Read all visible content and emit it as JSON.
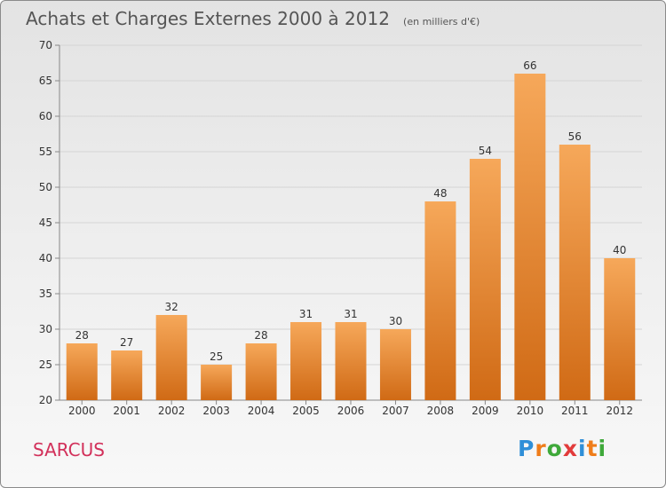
{
  "header": {
    "title": "Achats et Charges Externes 2000 à 2012",
    "subtitle": "(en milliers d'€)"
  },
  "footer": {
    "town": "SARCUS",
    "logo_letters": [
      "P",
      "r",
      "o",
      "x",
      "i",
      "t",
      "i"
    ],
    "logo_colors": [
      "#2f8fd8",
      "#ef7d1a",
      "#3fa93a",
      "#e23b3b",
      "#2f8fd8",
      "#ef7d1a",
      "#3fa93a"
    ]
  },
  "colors": {
    "bar_top": "#f6a85a",
    "bar_bottom": "#d06a15",
    "axis": "#888888",
    "grid": "#d5d5d5",
    "text": "#333333"
  },
  "chart_data": {
    "type": "bar",
    "title": "Achats et Charges Externes 2000 à 2012",
    "subtitle": "(en milliers d'€)",
    "categories": [
      "2000",
      "2001",
      "2002",
      "2003",
      "2004",
      "2005",
      "2006",
      "2007",
      "2008",
      "2009",
      "2010",
      "2011",
      "2012"
    ],
    "values": [
      28,
      27,
      32,
      25,
      28,
      31,
      31,
      30,
      48,
      54,
      66,
      56,
      40
    ],
    "ylim": [
      20,
      70
    ],
    "yticks": [
      20,
      25,
      30,
      35,
      40,
      45,
      50,
      55,
      60,
      65,
      70
    ],
    "grid": true,
    "data_labels": true
  }
}
